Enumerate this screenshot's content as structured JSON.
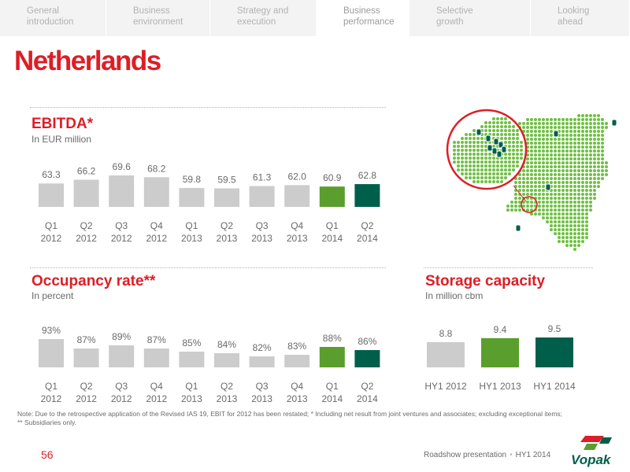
{
  "tabs": [
    {
      "line1": "General",
      "line2": "introduction"
    },
    {
      "line1": "Business",
      "line2": "environment"
    },
    {
      "line1": "Strategy and",
      "line2": "execution"
    },
    {
      "line1": "Business",
      "line2": "performance"
    },
    {
      "line1": "Selective",
      "line2": "growth"
    },
    {
      "line1": "Looking",
      "line2": "ahead"
    }
  ],
  "active_tab": 3,
  "page_title": "Netherlands",
  "ebitda": {
    "title": "EBITDA*",
    "subtitle": "In EUR million"
  },
  "occupancy": {
    "title": "Occupancy rate**",
    "subtitle": "In percent"
  },
  "storage": {
    "title": "Storage capacity",
    "subtitle": "In million cbm"
  },
  "colors": {
    "accent": "#dd1e26",
    "grey_bar": "#cccccc",
    "light_green": "#5a9e2d",
    "dark_green": "#005f4b"
  },
  "chart_data": [
    {
      "type": "bar",
      "title": "EBITDA*",
      "subtitle": "In EUR million",
      "categories": [
        "Q1 2012",
        "Q2 2012",
        "Q3 2012",
        "Q4 2012",
        "Q1 2013",
        "Q2 2013",
        "Q3 2013",
        "Q4 2013",
        "Q1 2014",
        "Q2 2014"
      ],
      "cat_line1": [
        "Q1",
        "Q2",
        "Q3",
        "Q4",
        "Q1",
        "Q2",
        "Q3",
        "Q4",
        "Q1",
        "Q2"
      ],
      "cat_line2": [
        "2012",
        "2012",
        "2012",
        "2012",
        "2013",
        "2013",
        "2013",
        "2013",
        "2014",
        "2014"
      ],
      "values": [
        63.3,
        66.2,
        69.6,
        68.2,
        59.8,
        59.5,
        61.3,
        62.0,
        60.9,
        62.8
      ],
      "labels": [
        "63.3",
        "66.2",
        "69.6",
        "68.2",
        "59.8",
        "59.5",
        "61.3",
        "62.0",
        "60.9",
        "62.8"
      ],
      "bar_colors": [
        "#cccccc",
        "#cccccc",
        "#cccccc",
        "#cccccc",
        "#cccccc",
        "#cccccc",
        "#cccccc",
        "#cccccc",
        "#5a9e2d",
        "#005f4b"
      ],
      "ylim": [
        0,
        70
      ]
    },
    {
      "type": "bar",
      "title": "Occupancy rate**",
      "subtitle": "In percent",
      "categories": [
        "Q1 2012",
        "Q2 2012",
        "Q3 2012",
        "Q4 2012",
        "Q1 2013",
        "Q2 2013",
        "Q3 2013",
        "Q4 2013",
        "Q1 2014",
        "Q2 2014"
      ],
      "cat_line1": [
        "Q1",
        "Q2",
        "Q3",
        "Q4",
        "Q1",
        "Q2",
        "Q3",
        "Q4",
        "Q1",
        "Q2"
      ],
      "cat_line2": [
        "2012",
        "2012",
        "2012",
        "2012",
        "2013",
        "2013",
        "2013",
        "2013",
        "2014",
        "2014"
      ],
      "values": [
        93,
        87,
        89,
        87,
        85,
        84,
        82,
        83,
        88,
        86
      ],
      "labels": [
        "93%",
        "87%",
        "89%",
        "87%",
        "85%",
        "84%",
        "82%",
        "83%",
        "88%",
        "86%"
      ],
      "bar_colors": [
        "#cccccc",
        "#cccccc",
        "#cccccc",
        "#cccccc",
        "#cccccc",
        "#cccccc",
        "#cccccc",
        "#cccccc",
        "#5a9e2d",
        "#005f4b"
      ],
      "ylim": [
        0,
        100
      ]
    },
    {
      "type": "bar",
      "title": "Storage capacity",
      "subtitle": "In million cbm",
      "categories": [
        "HY1 2012",
        "HY1 2013",
        "HY1 2014"
      ],
      "values": [
        8.8,
        9.4,
        9.5
      ],
      "labels": [
        "8.8",
        "9.4",
        "9.5"
      ],
      "bar_colors": [
        "#cccccc",
        "#5a9e2d",
        "#005f4b"
      ],
      "ylim": [
        0,
        10
      ]
    }
  ],
  "note_line1": "Note: Due to the retrospective application of the Revised IAS 19, EBIT for 2012 has been restated; * Including net result from joint ventures and associates; excluding exceptional items;",
  "note_line2": "** Subsidiaries only.",
  "page_number": "56",
  "footer": {
    "presentation": "Roadshow presentation",
    "period": "HY1 2014"
  },
  "logo_text": "Vopak",
  "icons": {
    "map": "netherlands-map-icon",
    "logo": "vopak-logo"
  }
}
